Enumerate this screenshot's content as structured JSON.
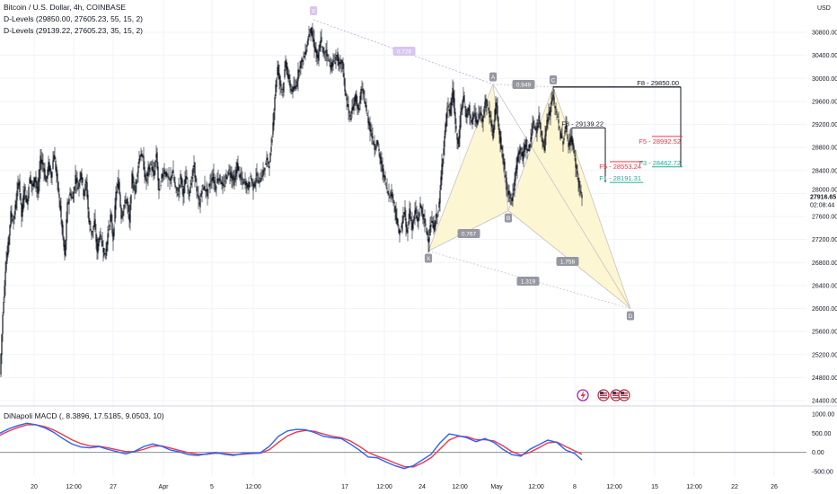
{
  "legend": {
    "title": "Bitcoin / U.S. Dollar, 4h, COINBASE",
    "dlevels1": "D-Levels (29850.00, 27605.23, 55, 15, 2)",
    "dlevels2": "D-Levels (29139.22, 27605.23, 35, 15, 2)",
    "macd": "DiNapoli MACD (, 8.3896, 17.5185, 9.0503, 10)"
  },
  "currency": "USD",
  "last_price": {
    "value": "27916.65",
    "countdown": "02:08:44"
  },
  "colors": {
    "up": "#26a69a",
    "down": "#131722",
    "candle": "#131722",
    "macd_blue": "#2962ff",
    "macd_red": "#f23645",
    "pattern_fill": "#fdf6d3",
    "pattern_line": "#c8c3c3",
    "f_red": "#f23645",
    "f_green": "#22ab94",
    "purple": "#b794d9"
  },
  "chart_data": {
    "type": "candlestick",
    "y_axis_ticks": [
      "30800.00",
      "30400.00",
      "30000.00",
      "29600.00",
      "29200.00",
      "28800.00",
      "28400.00",
      "28000.00",
      "27600.00",
      "27200.00",
      "26800.00",
      "26400.00",
      "26000.00",
      "25600.00",
      "25200.00",
      "24800.00",
      "24400.00"
    ],
    "macd_axis_ticks": [
      "1000.00",
      "500.00",
      "0.00",
      "-500.00"
    ],
    "x_axis_ticks": [
      "20",
      "12:00",
      "27",
      "Apr",
      "5",
      "12:00",
      "17",
      "12:00",
      "24",
      "12:00",
      "May",
      "12:00",
      "8",
      "12:00",
      "15",
      "12:00",
      "22",
      "26"
    ],
    "price_close_path": [
      [
        0,
        24850
      ],
      [
        3,
        25900
      ],
      [
        6,
        26700
      ],
      [
        9,
        27100
      ],
      [
        12,
        27650
      ],
      [
        15,
        27500
      ],
      [
        18,
        27900
      ],
      [
        21,
        28250
      ],
      [
        24,
        27600
      ],
      [
        27,
        28100
      ],
      [
        30,
        27800
      ],
      [
        33,
        28300
      ],
      [
        36,
        28100
      ],
      [
        39,
        28300
      ],
      [
        42,
        28000
      ],
      [
        45,
        28600
      ],
      [
        48,
        28500
      ],
      [
        51,
        28200
      ],
      [
        54,
        28500
      ],
      [
        57,
        28300
      ],
      [
        60,
        28700
      ],
      [
        63,
        28300
      ],
      [
        66,
        27900
      ],
      [
        69,
        27400
      ],
      [
        72,
        26900
      ],
      [
        75,
        27800
      ],
      [
        78,
        28000
      ],
      [
        81,
        27900
      ],
      [
        84,
        28300
      ],
      [
        87,
        28100
      ],
      [
        90,
        28400
      ],
      [
        93,
        28000
      ],
      [
        96,
        28200
      ],
      [
        99,
        27500
      ],
      [
        102,
        27300
      ],
      [
        105,
        27500
      ],
      [
        108,
        27000
      ],
      [
        111,
        27300
      ],
      [
        114,
        27100
      ],
      [
        117,
        26900
      ],
      [
        120,
        27300
      ],
      [
        123,
        27600
      ],
      [
        126,
        27200
      ],
      [
        129,
        28000
      ],
      [
        132,
        28200
      ],
      [
        135,
        27600
      ],
      [
        138,
        27800
      ],
      [
        141,
        27900
      ],
      [
        144,
        27500
      ],
      [
        147,
        28300
      ],
      [
        150,
        28000
      ],
      [
        153,
        28400
      ],
      [
        156,
        28700
      ],
      [
        159,
        28600
      ],
      [
        162,
        28200
      ],
      [
        165,
        28400
      ],
      [
        168,
        28500
      ],
      [
        171,
        28300
      ],
      [
        174,
        28700
      ],
      [
        177,
        28000
      ],
      [
        180,
        28300
      ],
      [
        183,
        28400
      ],
      [
        186,
        28300
      ],
      [
        189,
        28200
      ],
      [
        192,
        28400
      ],
      [
        195,
        28100
      ],
      [
        198,
        28000
      ],
      [
        201,
        28300
      ],
      [
        204,
        28000
      ],
      [
        207,
        28300
      ],
      [
        210,
        28000
      ],
      [
        213,
        28200
      ],
      [
        216,
        28500
      ],
      [
        219,
        28000
      ],
      [
        222,
        27800
      ],
      [
        225,
        28100
      ],
      [
        228,
        28100
      ],
      [
        231,
        28000
      ],
      [
        234,
        28200
      ],
      [
        237,
        28300
      ],
      [
        240,
        28100
      ],
      [
        243,
        28300
      ],
      [
        246,
        28200
      ],
      [
        249,
        28100
      ],
      [
        252,
        28300
      ],
      [
        255,
        28400
      ],
      [
        258,
        28300
      ],
      [
        261,
        28200
      ],
      [
        264,
        28500
      ],
      [
        267,
        28300
      ],
      [
        270,
        28200
      ],
      [
        273,
        28200
      ],
      [
        276,
        28100
      ],
      [
        279,
        28300
      ],
      [
        282,
        28100
      ],
      [
        285,
        28300
      ],
      [
        288,
        28200
      ],
      [
        291,
        28300
      ],
      [
        294,
        28400
      ],
      [
        297,
        28600
      ],
      [
        300,
        28500
      ],
      [
        303,
        29000
      ],
      [
        306,
        29700
      ],
      [
        309,
        30200
      ],
      [
        312,
        29900
      ],
      [
        315,
        29800
      ],
      [
        318,
        30300
      ],
      [
        321,
        30000
      ],
      [
        324,
        29800
      ],
      [
        327,
        29800
      ],
      [
        330,
        29900
      ],
      [
        333,
        30200
      ],
      [
        336,
        30300
      ],
      [
        339,
        30400
      ],
      [
        342,
        30600
      ],
      [
        345,
        30900
      ],
      [
        348,
        30700
      ],
      [
        351,
        30500
      ],
      [
        354,
        30300
      ],
      [
        357,
        30700
      ],
      [
        360,
        30400
      ],
      [
        363,
        30500
      ],
      [
        366,
        30300
      ],
      [
        369,
        30200
      ],
      [
        372,
        30300
      ],
      [
        375,
        30400
      ],
      [
        378,
        30200
      ],
      [
        381,
        30300
      ],
      [
        384,
        29800
      ],
      [
        387,
        29500
      ],
      [
        390,
        29300
      ],
      [
        393,
        29500
      ],
      [
        396,
        29700
      ],
      [
        399,
        29400
      ],
      [
        402,
        29800
      ],
      [
        405,
        29700
      ],
      [
        408,
        29400
      ],
      [
        411,
        29200
      ],
      [
        414,
        29000
      ],
      [
        417,
        28800
      ],
      [
        420,
        28900
      ],
      [
        423,
        28600
      ],
      [
        426,
        28400
      ],
      [
        429,
        28200
      ],
      [
        432,
        28000
      ],
      [
        435,
        28000
      ],
      [
        438,
        27900
      ],
      [
        441,
        27600
      ],
      [
        444,
        27300
      ],
      [
        447,
        27400
      ],
      [
        450,
        27700
      ],
      [
        453,
        27300
      ],
      [
        456,
        27700
      ],
      [
        459,
        27400
      ],
      [
        462,
        27700
      ],
      [
        465,
        27500
      ],
      [
        468,
        27800
      ],
      [
        471,
        27600
      ],
      [
        474,
        27400
      ],
      [
        477,
        27200
      ],
      [
        480,
        27500
      ],
      [
        483,
        27400
      ],
      [
        486,
        27600
      ],
      [
        489,
        27800
      ],
      [
        492,
        28500
      ],
      [
        495,
        29000
      ],
      [
        498,
        29500
      ],
      [
        501,
        29400
      ],
      [
        504,
        29800
      ],
      [
        507,
        29200
      ],
      [
        510,
        28800
      ],
      [
        513,
        29400
      ],
      [
        516,
        29700
      ],
      [
        519,
        29300
      ],
      [
        522,
        29500
      ],
      [
        525,
        29200
      ],
      [
        528,
        29400
      ],
      [
        531,
        29200
      ],
      [
        534,
        29400
      ],
      [
        537,
        29300
      ],
      [
        540,
        29600
      ],
      [
        543,
        29500
      ],
      [
        546,
        29300
      ],
      [
        549,
        29000
      ],
      [
        552,
        29600
      ],
      [
        555,
        29200
      ],
      [
        558,
        28800
      ],
      [
        561,
        28500
      ],
      [
        564,
        28100
      ],
      [
        567,
        28000
      ],
      [
        570,
        27900
      ],
      [
        573,
        28200
      ],
      [
        576,
        28600
      ],
      [
        579,
        28800
      ],
      [
        582,
        28600
      ],
      [
        585,
        28900
      ],
      [
        588,
        28700
      ],
      [
        591,
        29000
      ],
      [
        594,
        29200
      ],
      [
        597,
        29100
      ],
      [
        600,
        29300
      ],
      [
        603,
        29000
      ],
      [
        606,
        28800
      ],
      [
        609,
        29300
      ],
      [
        612,
        29400
      ],
      [
        615,
        29700
      ],
      [
        618,
        29500
      ],
      [
        621,
        29300
      ],
      [
        624,
        29000
      ],
      [
        627,
        28900
      ],
      [
        630,
        29200
      ],
      [
        633,
        28800
      ],
      [
        636,
        29000
      ],
      [
        639,
        28700
      ],
      [
        642,
        28400
      ],
      [
        645,
        28100
      ],
      [
        648,
        27920
      ]
    ],
    "harmonic_points": [
      {
        "label": "X",
        "x": 477,
        "price": 27000,
        "note": "27000"
      },
      {
        "label": "A",
        "x": 549,
        "price": 29900,
        "note": "29900"
      },
      {
        "label": "B",
        "x": 566,
        "price": 27700,
        "note": "27700"
      },
      {
        "label": "C",
        "x": 616,
        "price": 29850,
        "note": "29850"
      },
      {
        "label": "D",
        "x": 702,
        "price": 26000,
        "note": "26000"
      }
    ],
    "ratios": [
      {
        "text": "0.767",
        "x": 522,
        "y": 260
      },
      {
        "text": "0.949",
        "x": 583,
        "y": 94
      },
      {
        "text": "1.758",
        "x": 632,
        "y": 291
      },
      {
        "text": "1.319",
        "x": 588,
        "y": 313
      },
      {
        "text": "0.726",
        "x": 450,
        "y": 57
      }
    ],
    "top_point_label": {
      "text": "X",
      "x": 349,
      "y": 12
    },
    "levels": [
      {
        "label": "F8 - 29850.00",
        "price": 29850,
        "x1": 616,
        "x2": 758,
        "color": "#131722",
        "side": "top"
      },
      {
        "label": "F8 - 29139.22",
        "price": 29139,
        "x1": 637,
        "x2": 674,
        "color": "#131722",
        "side": "top"
      },
      {
        "label": "F5 - 28992.52",
        "price": 28992,
        "x1": 726,
        "x2": 760,
        "color": "#f23645",
        "side": "bottom"
      },
      {
        "label": "F5 - 28553.24",
        "price": 28553,
        "x1": 679,
        "x2": 716,
        "color": "#f23645",
        "side": "bottom"
      },
      {
        "label": "F3 - 28462.72",
        "price": 28462,
        "x1": 726,
        "x2": 760,
        "color": "#22ab94",
        "side": "top"
      },
      {
        "label": "F1 - 28191.31",
        "price": 28191,
        "x1": 679,
        "x2": 716,
        "color": "#22ab94",
        "side": "top"
      }
    ],
    "macd_line": [
      [
        0,
        500
      ],
      [
        10,
        620
      ],
      [
        20,
        700
      ],
      [
        30,
        760
      ],
      [
        40,
        720
      ],
      [
        50,
        640
      ],
      [
        60,
        520
      ],
      [
        70,
        360
      ],
      [
        80,
        220
      ],
      [
        90,
        140
      ],
      [
        100,
        120
      ],
      [
        110,
        150
      ],
      [
        120,
        80
      ],
      [
        130,
        20
      ],
      [
        140,
        -40
      ],
      [
        150,
        30
      ],
      [
        160,
        150
      ],
      [
        170,
        220
      ],
      [
        180,
        160
      ],
      [
        190,
        60
      ],
      [
        200,
        10
      ],
      [
        210,
        -60
      ],
      [
        220,
        -80
      ],
      [
        230,
        -40
      ],
      [
        240,
        0
      ],
      [
        250,
        -50
      ],
      [
        260,
        -80
      ],
      [
        270,
        -30
      ],
      [
        280,
        -20
      ],
      [
        290,
        -10
      ],
      [
        300,
        160
      ],
      [
        310,
        420
      ],
      [
        320,
        560
      ],
      [
        330,
        600
      ],
      [
        340,
        590
      ],
      [
        350,
        520
      ],
      [
        360,
        420
      ],
      [
        370,
        380
      ],
      [
        380,
        360
      ],
      [
        390,
        220
      ],
      [
        400,
        60
      ],
      [
        410,
        -120
      ],
      [
        420,
        -140
      ],
      [
        430,
        -250
      ],
      [
        440,
        -350
      ],
      [
        450,
        -420
      ],
      [
        460,
        -350
      ],
      [
        470,
        -200
      ],
      [
        480,
        -50
      ],
      [
        490,
        250
      ],
      [
        500,
        480
      ],
      [
        510,
        440
      ],
      [
        520,
        380
      ],
      [
        530,
        280
      ],
      [
        540,
        360
      ],
      [
        550,
        260
      ],
      [
        560,
        80
      ],
      [
        570,
        -60
      ],
      [
        580,
        -100
      ],
      [
        590,
        80
      ],
      [
        600,
        200
      ],
      [
        610,
        320
      ],
      [
        620,
        260
      ],
      [
        630,
        60
      ],
      [
        640,
        -30
      ],
      [
        648,
        -200
      ]
    ],
    "signal_line": [
      [
        0,
        450
      ],
      [
        10,
        560
      ],
      [
        20,
        650
      ],
      [
        30,
        720
      ],
      [
        40,
        720
      ],
      [
        50,
        670
      ],
      [
        60,
        580
      ],
      [
        70,
        460
      ],
      [
        80,
        330
      ],
      [
        90,
        230
      ],
      [
        100,
        170
      ],
      [
        110,
        160
      ],
      [
        120,
        120
      ],
      [
        130,
        70
      ],
      [
        140,
        20
      ],
      [
        150,
        20
      ],
      [
        160,
        80
      ],
      [
        170,
        160
      ],
      [
        180,
        170
      ],
      [
        190,
        110
      ],
      [
        200,
        50
      ],
      [
        210,
        -10
      ],
      [
        220,
        -50
      ],
      [
        230,
        -50
      ],
      [
        240,
        -20
      ],
      [
        250,
        -30
      ],
      [
        260,
        -60
      ],
      [
        270,
        -50
      ],
      [
        280,
        -30
      ],
      [
        290,
        -20
      ],
      [
        300,
        70
      ],
      [
        310,
        260
      ],
      [
        320,
        430
      ],
      [
        330,
        530
      ],
      [
        340,
        570
      ],
      [
        350,
        550
      ],
      [
        360,
        480
      ],
      [
        370,
        420
      ],
      [
        380,
        380
      ],
      [
        390,
        300
      ],
      [
        400,
        160
      ],
      [
        410,
        0
      ],
      [
        420,
        -100
      ],
      [
        430,
        -180
      ],
      [
        440,
        -280
      ],
      [
        450,
        -370
      ],
      [
        460,
        -380
      ],
      [
        470,
        -280
      ],
      [
        480,
        -140
      ],
      [
        490,
        90
      ],
      [
        500,
        320
      ],
      [
        510,
        420
      ],
      [
        520,
        410
      ],
      [
        530,
        330
      ],
      [
        540,
        330
      ],
      [
        550,
        300
      ],
      [
        560,
        170
      ],
      [
        570,
        20
      ],
      [
        580,
        -70
      ],
      [
        590,
        0
      ],
      [
        600,
        120
      ],
      [
        610,
        250
      ],
      [
        620,
        270
      ],
      [
        630,
        150
      ],
      [
        640,
        40
      ],
      [
        648,
        -50
      ]
    ]
  }
}
